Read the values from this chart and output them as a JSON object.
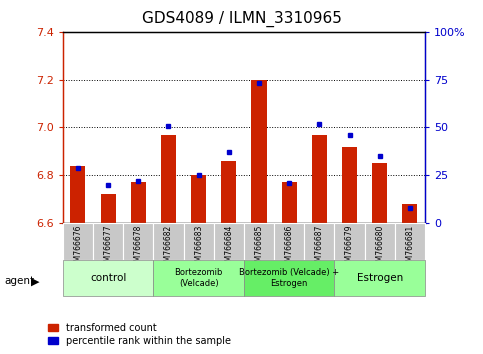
{
  "title": "GDS4089 / ILMN_3310965",
  "samples": [
    "GSM766676",
    "GSM766677",
    "GSM766678",
    "GSM766682",
    "GSM766683",
    "GSM766684",
    "GSM766685",
    "GSM766686",
    "GSM766687",
    "GSM766679",
    "GSM766680",
    "GSM766681"
  ],
  "transformed_count": [
    6.84,
    6.72,
    6.77,
    6.97,
    6.8,
    6.86,
    7.2,
    6.77,
    6.97,
    6.92,
    6.85,
    6.68
  ],
  "percentile_rank": [
    29,
    20,
    22,
    51,
    25,
    37,
    73,
    21,
    52,
    46,
    35,
    8
  ],
  "y_min": 6.6,
  "y_max": 7.4,
  "y_ticks": [
    6.6,
    6.8,
    7.0,
    7.2,
    7.4
  ],
  "y2_labels": [
    "0",
    "25",
    "50",
    "75",
    "100%"
  ],
  "bar_color": "#cc2200",
  "dot_color": "#0000cc",
  "groups": [
    {
      "label": "control",
      "start": 0,
      "end": 3,
      "color": "#ccffcc"
    },
    {
      "label": "Bortezomib\n(Velcade)",
      "start": 3,
      "end": 6,
      "color": "#99ff99"
    },
    {
      "label": "Bortezomib (Velcade) +\nEstrogen",
      "start": 6,
      "end": 9,
      "color": "#66ee66"
    },
    {
      "label": "Estrogen",
      "start": 9,
      "end": 12,
      "color": "#99ff99"
    }
  ],
  "agent_label": "agent",
  "legend_red": "transformed count",
  "legend_blue": "percentile rank within the sample"
}
